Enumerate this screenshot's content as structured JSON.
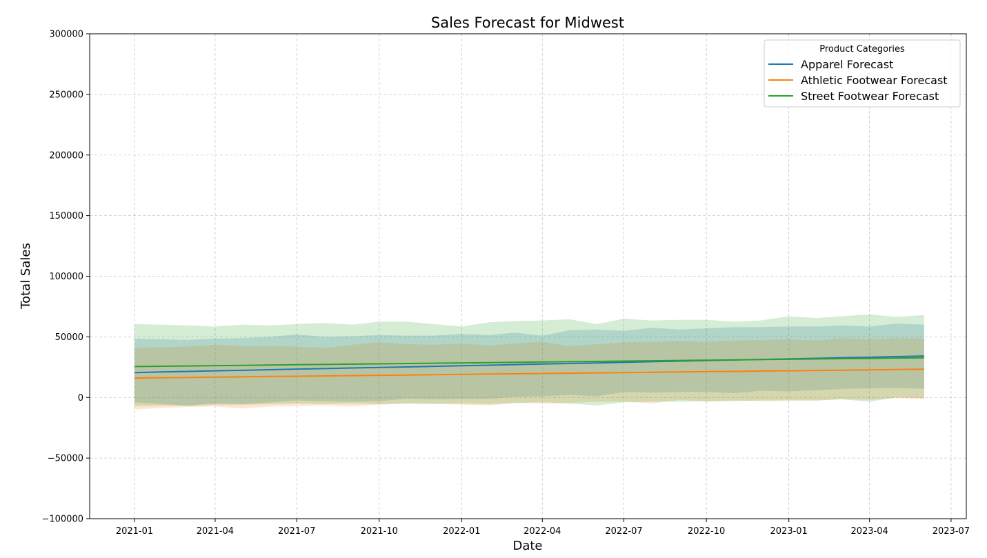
{
  "chart_data": {
    "type": "line",
    "title": "Sales Forecast for Midwest",
    "xlabel": "Date",
    "ylabel": "Total Sales",
    "ylim": [
      -100000,
      300000
    ],
    "xlim": [
      "2020-11-12",
      "2023-07-18"
    ],
    "grid": true,
    "legend_title": "Product Categories",
    "legend_position": "top-right",
    "x_ticks": [
      "2021-01",
      "2021-04",
      "2021-07",
      "2021-10",
      "2022-01",
      "2022-04",
      "2022-07",
      "2022-10",
      "2023-01",
      "2023-04",
      "2023-07"
    ],
    "y_ticks": [
      -100000,
      -50000,
      0,
      50000,
      100000,
      150000,
      200000,
      250000,
      300000
    ],
    "y_tick_labels": [
      "−100000",
      "−50000",
      "0",
      "50000",
      "100000",
      "150000",
      "200000",
      "250000",
      "300000"
    ],
    "dates": [
      "2021-01-01",
      "2021-02-01",
      "2021-03-01",
      "2021-04-01",
      "2021-05-01",
      "2021-06-01",
      "2021-07-01",
      "2021-08-01",
      "2021-09-01",
      "2021-10-01",
      "2021-11-01",
      "2021-12-01",
      "2022-01-01",
      "2022-02-01",
      "2022-03-01",
      "2022-04-01",
      "2022-05-01",
      "2022-06-01",
      "2022-07-01",
      "2022-08-01",
      "2022-09-01",
      "2022-10-01",
      "2022-11-01",
      "2022-12-01",
      "2023-01-01",
      "2023-02-01",
      "2023-03-01",
      "2023-04-01",
      "2023-05-01",
      "2023-06-01"
    ],
    "series": [
      {
        "name": "Apparel Forecast",
        "color": "#1f77b4",
        "values": [
          20500,
          21000,
          21500,
          22000,
          22400,
          22900,
          23400,
          23800,
          24300,
          24800,
          25200,
          25700,
          26200,
          26600,
          27100,
          27600,
          28000,
          28500,
          29000,
          29500,
          30000,
          30400,
          30900,
          31400,
          31800,
          32300,
          32800,
          33200,
          33700,
          34200
        ],
        "lower": [
          -4000,
          -5500,
          -6500,
          -5000,
          -5500,
          -4000,
          -2500,
          -3000,
          -3500,
          -3000,
          -1000,
          -1500,
          -1200,
          -1000,
          500,
          1000,
          2000,
          1000,
          4500,
          4000,
          4500,
          4500,
          3500,
          5500,
          5000,
          6000,
          7000,
          7500,
          8000,
          7000
        ],
        "upper": [
          48500,
          48000,
          47500,
          48500,
          49000,
          50000,
          52000,
          50000,
          50500,
          51500,
          51000,
          51000,
          52500,
          51500,
          53500,
          51000,
          55500,
          56000,
          55000,
          57500,
          56000,
          57000,
          58000,
          58000,
          58500,
          58500,
          59500,
          58500,
          61000,
          60000
        ]
      },
      {
        "name": "Athletic Footwear Forecast",
        "color": "#ff7f0e",
        "values": [
          16000,
          16300,
          16500,
          16800,
          17000,
          17300,
          17500,
          17800,
          18000,
          18300,
          18500,
          18800,
          19000,
          19300,
          19500,
          19800,
          20000,
          20300,
          20500,
          20800,
          21000,
          21300,
          21500,
          21800,
          22000,
          22300,
          22500,
          22800,
          23000,
          23300
        ],
        "lower": [
          -10000,
          -8500,
          -8000,
          -7500,
          -9000,
          -7500,
          -7000,
          -6500,
          -7500,
          -6000,
          -5000,
          -5000,
          -6000,
          -6500,
          -4500,
          -5000,
          -4500,
          -3500,
          -3500,
          -5000,
          -2000,
          -3500,
          -2500,
          -3000,
          -2500,
          -2500,
          -1500,
          -2000,
          -500,
          -1500
        ],
        "upper": [
          41000,
          41500,
          42000,
          43500,
          42500,
          42500,
          42000,
          41000,
          43500,
          45500,
          44000,
          43500,
          44500,
          43000,
          44500,
          46000,
          42500,
          44000,
          45500,
          46000,
          46500,
          46000,
          47000,
          47500,
          48000,
          47000,
          49000,
          48000,
          49000,
          48500
        ]
      },
      {
        "name": "Street Footwear Forecast",
        "color": "#2ca02c",
        "values": [
          25500,
          25750,
          26000,
          26250,
          26500,
          26750,
          27000,
          27250,
          27500,
          27750,
          28000,
          28250,
          28500,
          28750,
          29000,
          29250,
          29500,
          29750,
          30000,
          30250,
          30500,
          30750,
          31000,
          31250,
          31500,
          31750,
          32000,
          32250,
          32500,
          32750
        ],
        "lower": [
          -7000,
          -6500,
          -7000,
          -6000,
          -6000,
          -5500,
          -5000,
          -5500,
          -5000,
          -5500,
          -5000,
          -5500,
          -5000,
          -5500,
          -4500,
          -4000,
          -5000,
          -6500,
          -4000,
          -3500,
          -3500,
          -3000,
          -3000,
          -2500,
          -2500,
          -2500,
          -1500,
          -3500,
          0,
          -500
        ],
        "upper": [
          60500,
          60000,
          59500,
          58500,
          60000,
          59500,
          60500,
          61500,
          60000,
          62500,
          62500,
          60500,
          58500,
          62000,
          63000,
          63500,
          64500,
          60500,
          65000,
          63500,
          64000,
          64000,
          62500,
          63500,
          67000,
          65500,
          67000,
          68500,
          66500,
          68000
        ]
      }
    ]
  }
}
